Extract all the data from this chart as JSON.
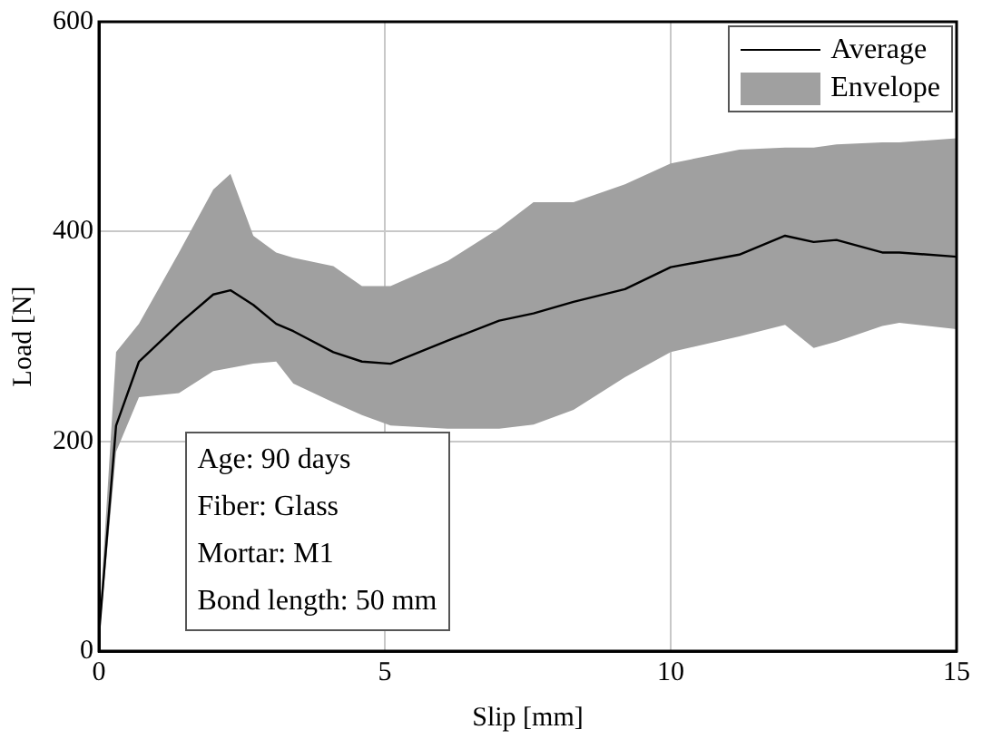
{
  "chart_data": {
    "type": "line",
    "xlabel": "Slip [mm]",
    "ylabel": "Load [N]",
    "x": [
      0,
      0.3,
      0.7,
      1.4,
      2.0,
      2.3,
      2.7,
      3.1,
      3.4,
      4.1,
      4.6,
      5.1,
      6.1,
      7.0,
      7.6,
      8.3,
      9.2,
      10,
      11.2,
      12,
      12.5,
      12.9,
      13.7,
      14,
      15
    ],
    "series": [
      {
        "name": "Average",
        "color": "#000000",
        "values": [
          15,
          215,
          276,
          312,
          340,
          344,
          330,
          312,
          305,
          285,
          276,
          274,
          296,
          315,
          322,
          333,
          345,
          366,
          378,
          396,
          390,
          392,
          380,
          380,
          376
        ]
      },
      {
        "name": "Envelope",
        "type": "area",
        "color": "#a0a0a0",
        "values": [
          null,
          null,
          null,
          null,
          null,
          null,
          null,
          null,
          null,
          null,
          null,
          null,
          null,
          null,
          null,
          null,
          null,
          null,
          null,
          null,
          null,
          null,
          null,
          null,
          null
        ],
        "lower": [
          10,
          190,
          242,
          246,
          267,
          270,
          274,
          276,
          255,
          237,
          225,
          215,
          212,
          212,
          216,
          230,
          261,
          285,
          300,
          311,
          289,
          295,
          310,
          313,
          307
        ],
        "upper": [
          20,
          285,
          312,
          380,
          440,
          455,
          396,
          380,
          375,
          367,
          348,
          348,
          372,
          403,
          428,
          428,
          445,
          465,
          478,
          480,
          480,
          483,
          485,
          485,
          489
        ]
      }
    ],
    "xlim": [
      0,
      15
    ],
    "xticks": [
      0,
      5,
      10,
      15
    ],
    "ylim": [
      0,
      600
    ],
    "yticks": [
      0,
      200,
      400,
      600
    ],
    "grid": true,
    "legend": "top right",
    "marker": "none",
    "line_style": "solid",
    "annotations": [
      "Age: 90 days",
      "Fiber: Glass",
      "Mortar: M1",
      "Bond length: 50 mm"
    ]
  }
}
